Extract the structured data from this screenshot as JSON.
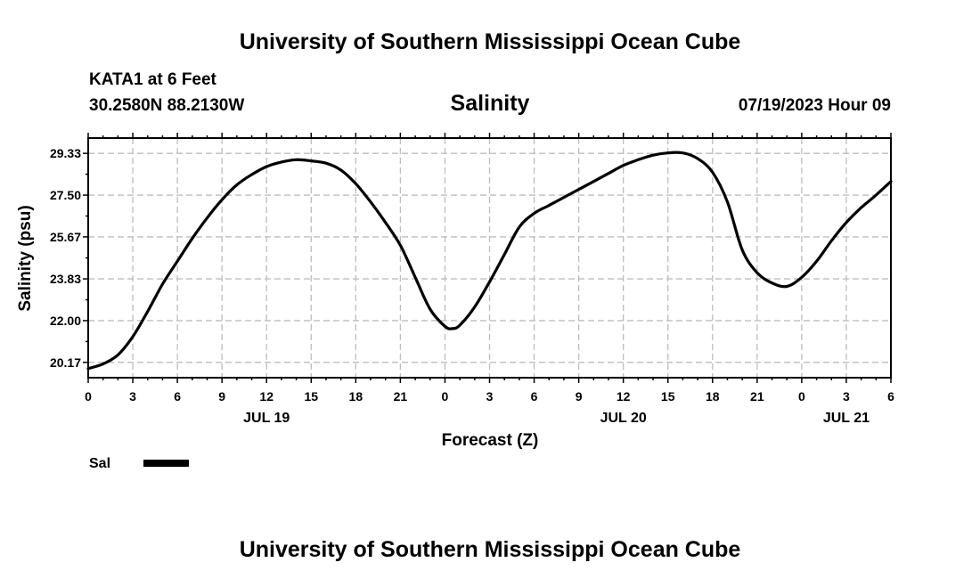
{
  "header": {
    "top_title": "University of Southern Mississippi Ocean Cube",
    "station": "KATA1 at 6 Feet",
    "coords": "30.2580N  88.2130W",
    "datetime": "07/19/2023 Hour 09",
    "bottom_title": "University of Southern Mississippi Ocean Cube"
  },
  "legend": {
    "label": "Sal",
    "placement": "bottom-left"
  },
  "chart_data": {
    "type": "line",
    "title": "Salinity",
    "xlabel": "Forecast (Z)",
    "ylabel": "Salinity (psu)",
    "xlim": [
      0,
      54
    ],
    "ylim": [
      19.5,
      30.0
    ],
    "grid": true,
    "x_unit": "hours from 00Z JUL 19",
    "x_tick_labels": [
      "0",
      "3",
      "6",
      "9",
      "12",
      "15",
      "18",
      "21",
      "0",
      "3",
      "6",
      "9",
      "12",
      "15",
      "18",
      "21",
      "0",
      "3",
      "6"
    ],
    "x_day_labels": [
      {
        "label": "JUL 19",
        "x": 12
      },
      {
        "label": "JUL 20",
        "x": 36
      },
      {
        "label": "JUL 21",
        "x": 51
      }
    ],
    "y_tick_values": [
      20.17,
      22.0,
      23.83,
      25.67,
      27.5,
      29.33
    ],
    "y_tick_labels": [
      "20.17",
      "22.00",
      "23.83",
      "25.67",
      "27.50",
      "29.33"
    ],
    "series": [
      {
        "name": "Sal",
        "color": "#000000",
        "x": [
          0,
          1,
          2,
          3,
          4,
          5,
          6,
          7,
          8,
          9,
          10,
          11,
          12,
          13,
          14,
          15,
          16,
          17,
          18,
          19,
          20,
          21,
          22,
          23,
          24,
          24.5,
          25,
          26,
          27,
          28,
          29,
          30,
          31,
          32,
          33,
          34,
          35,
          36,
          37,
          38,
          39,
          40,
          41,
          42,
          43,
          44,
          45,
          46,
          47,
          48,
          49,
          50,
          51,
          52,
          53,
          54
        ],
        "y": [
          19.9,
          20.1,
          20.5,
          21.3,
          22.4,
          23.6,
          24.6,
          25.6,
          26.5,
          27.3,
          27.95,
          28.4,
          28.75,
          28.95,
          29.05,
          29.0,
          28.9,
          28.6,
          28.0,
          27.2,
          26.3,
          25.3,
          23.9,
          22.5,
          21.75,
          21.65,
          21.8,
          22.6,
          23.7,
          24.9,
          26.1,
          26.7,
          27.05,
          27.4,
          27.75,
          28.1,
          28.45,
          28.8,
          29.05,
          29.25,
          29.35,
          29.35,
          29.1,
          28.5,
          27.2,
          25.1,
          24.1,
          23.65,
          23.5,
          23.9,
          24.6,
          25.5,
          26.3,
          26.95,
          27.5,
          28.1
        ]
      }
    ]
  }
}
